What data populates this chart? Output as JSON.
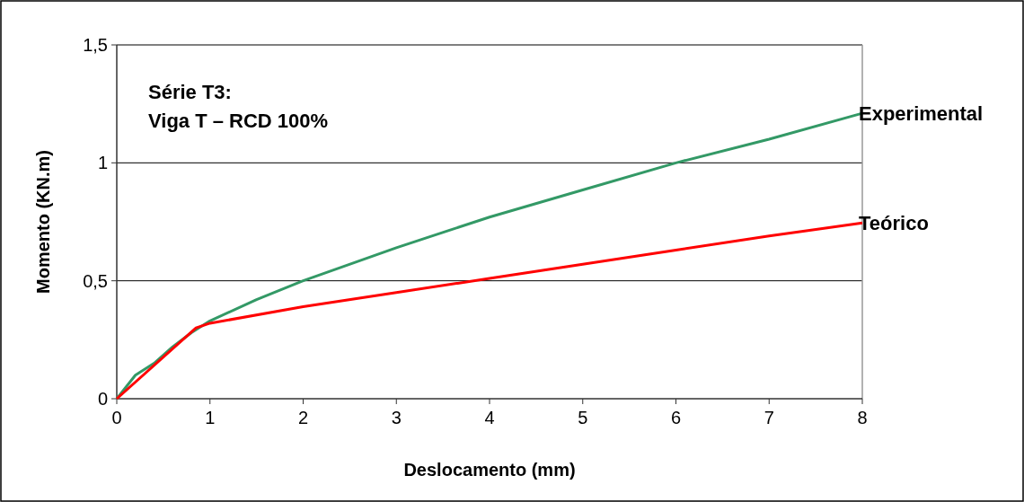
{
  "chart_data": {
    "type": "line",
    "xlabel": "Deslocamento (mm)",
    "ylabel": "Momento (KN.m)",
    "annotations": [
      "Série T3:",
      "Viga T – RCD 100%"
    ],
    "xlim": [
      0,
      8
    ],
    "xticks": [
      0,
      1,
      2,
      3,
      4,
      5,
      6,
      7,
      8
    ],
    "ylim": [
      0,
      1.5
    ],
    "yticks": [
      0,
      {
        "value": 0.5,
        "label": "0,5"
      },
      1,
      {
        "value": 1.5,
        "label": "1,5"
      }
    ],
    "grid": "y",
    "legend": false,
    "marker": "none",
    "line_style": "solid",
    "series": [
      {
        "name": "Experimental",
        "color": "#339966",
        "x": [
          0,
          0.2,
          0.4,
          0.6,
          0.8,
          1,
          1.5,
          2,
          3,
          4,
          5,
          6,
          7,
          8
        ],
        "values": [
          0,
          0.1,
          0.15,
          0.22,
          0.28,
          0.33,
          0.42,
          0.5,
          0.64,
          0.77,
          0.885,
          1.0,
          1.1,
          1.21
        ]
      },
      {
        "name": "Teórico",
        "color": "#ff0000",
        "x": [
          0,
          0.85,
          1,
          2,
          3,
          4,
          5,
          6,
          7,
          8
        ],
        "values": [
          0,
          0.3,
          0.32,
          0.39,
          0.45,
          0.51,
          0.57,
          0.63,
          0.69,
          0.745
        ]
      }
    ]
  }
}
